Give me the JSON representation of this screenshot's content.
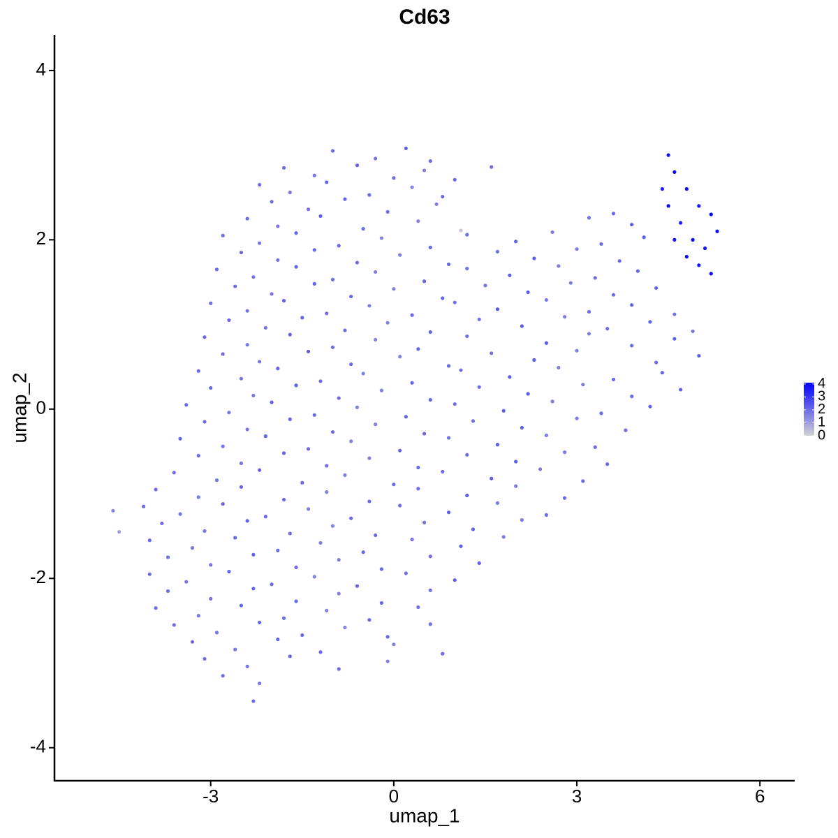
{
  "chart_data": {
    "type": "scatter",
    "title": "Cd63",
    "x_label": "umap_1",
    "y_label": "umap_2",
    "xlim": [
      -5.56,
      6.57
    ],
    "ylim": [
      -4.39,
      4.42
    ],
    "xticks": [
      -3,
      0,
      3,
      6
    ],
    "yticks": [
      -4,
      -2,
      0,
      2,
      4
    ],
    "color_low": "#d3d3d3",
    "color_high": "#0000ff",
    "colorbar_lim": [
      0,
      4.1
    ],
    "colorbar_ticks": [
      0,
      1,
      2,
      3,
      4
    ],
    "x": [
      -1.0,
      -0.3,
      0.2,
      0.6,
      -1.8,
      -1.3,
      -0.6,
      0.0,
      0.5,
      1.0,
      1.6,
      -2.2,
      -1.7,
      -1.1,
      -0.4,
      0.3,
      0.8,
      -2.0,
      -1.4,
      -0.8,
      -0.1,
      0.7,
      3.6,
      -2.4,
      -1.9,
      -1.2,
      -0.5,
      0.4,
      1.1,
      3.2,
      3.9,
      -2.8,
      -2.2,
      -1.6,
      -0.9,
      -0.2,
      0.6,
      1.2,
      2.0,
      2.6,
      3.4,
      4.1,
      -2.5,
      -1.9,
      -1.3,
      -0.6,
      0.1,
      0.9,
      1.7,
      2.3,
      3.0,
      3.7,
      -2.9,
      -2.3,
      -1.6,
      -1.0,
      -0.3,
      0.5,
      1.2,
      1.9,
      2.7,
      3.3,
      4.0,
      -2.6,
      -2.0,
      -1.3,
      -0.7,
      0.0,
      0.8,
      1.5,
      2.2,
      2.9,
      3.6,
      4.3,
      -3.0,
      -2.4,
      -1.8,
      -1.1,
      -0.4,
      0.3,
      1.0,
      1.7,
      2.5,
      3.2,
      3.9,
      4.6,
      -2.7,
      -2.1,
      -1.5,
      -0.8,
      -0.1,
      0.6,
      1.4,
      2.1,
      2.8,
      3.5,
      4.2,
      4.9,
      -3.1,
      -2.4,
      -1.7,
      -1.0,
      -0.3,
      0.4,
      1.2,
      2.5,
      3.2,
      3.9,
      4.6,
      -2.8,
      -2.2,
      -1.4,
      -0.7,
      0.1,
      0.9,
      1.6,
      2.3,
      3.0,
      4.3,
      5.0,
      -3.2,
      -2.5,
      -1.9,
      -1.2,
      -0.5,
      0.3,
      1.1,
      1.9,
      2.7,
      3.6,
      4.4,
      -3.0,
      -2.3,
      -1.6,
      -0.9,
      -0.2,
      0.6,
      1.4,
      2.2,
      3.1,
      3.9,
      4.7,
      -3.4,
      -2.7,
      -2.0,
      -1.3,
      -0.6,
      0.2,
      1.0,
      1.8,
      2.6,
      3.4,
      4.2,
      -3.1,
      -2.4,
      -1.7,
      -1.0,
      -0.3,
      0.5,
      1.3,
      2.1,
      3.0,
      3.8,
      -3.5,
      -2.8,
      -2.1,
      -1.4,
      -0.7,
      0.1,
      0.9,
      1.7,
      2.5,
      3.3,
      -3.2,
      -2.5,
      -1.8,
      -1.1,
      -0.4,
      0.4,
      1.2,
      2.0,
      2.8,
      3.5,
      -3.6,
      -2.9,
      -2.2,
      -1.5,
      -0.8,
      0.0,
      0.8,
      1.6,
      2.4,
      3.1,
      -3.9,
      -3.2,
      -2.5,
      -1.8,
      -1.1,
      -0.4,
      0.4,
      1.2,
      2.0,
      2.8,
      -4.1,
      -3.5,
      -2.8,
      -2.1,
      -1.4,
      -0.7,
      0.1,
      0.9,
      1.7,
      2.5,
      -3.8,
      -3.1,
      -2.4,
      -1.7,
      -1.0,
      -0.3,
      0.5,
      1.3,
      2.1,
      -4.0,
      -3.3,
      -2.6,
      -1.9,
      -1.2,
      -0.5,
      0.3,
      1.1,
      1.8,
      -3.7,
      -3.0,
      -2.3,
      -1.6,
      -0.9,
      -0.2,
      0.6,
      1.4,
      -4.0,
      -3.4,
      -2.7,
      -2.0,
      -1.3,
      -0.6,
      0.2,
      1.0,
      -3.7,
      -3.0,
      -2.3,
      -1.6,
      -0.9,
      -0.2,
      0.6,
      -3.9,
      -3.2,
      -2.5,
      -1.8,
      -1.1,
      -0.4,
      0.4,
      -3.6,
      -2.9,
      -2.2,
      -1.5,
      -0.8,
      -0.1,
      0.6,
      -3.3,
      -2.6,
      -1.9,
      -1.2,
      0.0,
      0.8,
      -3.1,
      -2.4,
      -1.7,
      -0.9,
      -0.1,
      -2.8,
      -2.2,
      -2.3,
      -4.6,
      -4.5,
      4.5,
      4.6,
      4.4,
      4.8,
      5.0,
      5.2,
      4.7,
      5.3,
      4.9,
      5.1,
      4.8,
      5.0,
      5.2,
      4.5,
      4.6
    ],
    "y": [
      3.05,
      2.96,
      3.08,
      2.93,
      2.85,
      2.76,
      2.88,
      2.73,
      2.82,
      2.71,
      2.86,
      2.65,
      2.56,
      2.68,
      2.53,
      2.62,
      2.51,
      2.45,
      2.36,
      2.48,
      2.33,
      2.42,
      2.31,
      2.25,
      2.16,
      2.28,
      2.13,
      2.22,
      2.11,
      2.26,
      2.18,
      2.05,
      1.96,
      2.08,
      1.93,
      2.02,
      1.91,
      2.06,
      1.98,
      2.09,
      1.95,
      2.03,
      1.85,
      1.76,
      1.88,
      1.73,
      1.82,
      1.71,
      1.86,
      1.78,
      1.89,
      1.75,
      1.65,
      1.56,
      1.68,
      1.53,
      1.62,
      1.51,
      1.66,
      1.58,
      1.69,
      1.55,
      1.63,
      1.45,
      1.36,
      1.48,
      1.33,
      1.42,
      1.31,
      1.46,
      1.38,
      1.49,
      1.35,
      1.43,
      1.25,
      1.16,
      1.28,
      1.13,
      1.22,
      1.11,
      1.26,
      1.18,
      1.29,
      1.15,
      1.23,
      1.12,
      1.05,
      0.96,
      1.08,
      0.93,
      1.02,
      0.91,
      1.06,
      0.98,
      1.09,
      0.95,
      1.03,
      0.92,
      0.85,
      0.76,
      0.88,
      0.73,
      0.82,
      0.71,
      0.86,
      0.78,
      0.89,
      0.75,
      0.83,
      0.65,
      0.56,
      0.68,
      0.53,
      0.62,
      0.51,
      0.66,
      0.58,
      0.69,
      0.55,
      0.63,
      0.45,
      0.36,
      0.48,
      0.33,
      0.42,
      0.31,
      0.46,
      0.38,
      0.49,
      0.35,
      0.43,
      0.25,
      0.16,
      0.28,
      0.13,
      0.22,
      0.11,
      0.26,
      0.18,
      0.29,
      0.15,
      0.23,
      0.05,
      -0.04,
      0.08,
      -0.07,
      0.02,
      -0.09,
      0.06,
      -0.02,
      0.09,
      -0.05,
      0.03,
      -0.15,
      -0.24,
      -0.12,
      -0.27,
      -0.18,
      -0.29,
      -0.14,
      -0.22,
      -0.11,
      -0.25,
      -0.35,
      -0.44,
      -0.32,
      -0.47,
      -0.38,
      -0.49,
      -0.34,
      -0.42,
      -0.31,
      -0.45,
      -0.55,
      -0.64,
      -0.52,
      -0.67,
      -0.58,
      -0.69,
      -0.54,
      -0.62,
      -0.51,
      -0.65,
      -0.75,
      -0.84,
      -0.72,
      -0.87,
      -0.78,
      -0.89,
      -0.74,
      -0.82,
      -0.71,
      -0.85,
      -0.95,
      -1.04,
      -0.92,
      -1.07,
      -0.98,
      -1.09,
      -0.94,
      -1.02,
      -0.91,
      -1.05,
      -1.15,
      -1.24,
      -1.12,
      -1.27,
      -1.18,
      -1.29,
      -1.14,
      -1.22,
      -1.11,
      -1.25,
      -1.35,
      -1.44,
      -1.32,
      -1.47,
      -1.38,
      -1.49,
      -1.34,
      -1.42,
      -1.31,
      -1.55,
      -1.64,
      -1.52,
      -1.67,
      -1.58,
      -1.69,
      -1.54,
      -1.62,
      -1.51,
      -1.75,
      -1.84,
      -1.72,
      -1.87,
      -1.78,
      -1.89,
      -1.74,
      -1.82,
      -1.95,
      -2.04,
      -1.92,
      -2.07,
      -1.98,
      -2.09,
      -1.94,
      -2.02,
      -2.15,
      -2.24,
      -2.12,
      -2.27,
      -2.18,
      -2.29,
      -2.14,
      -2.35,
      -2.44,
      -2.32,
      -2.47,
      -2.38,
      -2.49,
      -2.34,
      -2.55,
      -2.64,
      -2.52,
      -2.67,
      -2.58,
      -2.69,
      -2.54,
      -2.75,
      -2.84,
      -2.72,
      -2.87,
      -2.78,
      -2.89,
      -2.95,
      -3.04,
      -2.92,
      -3.07,
      -2.98,
      -3.15,
      -3.24,
      -3.45,
      -1.2,
      -1.45,
      3.0,
      2.8,
      2.6,
      2.6,
      2.4,
      2.3,
      2.2,
      2.1,
      2.0,
      1.9,
      1.8,
      1.7,
      1.6,
      2.4,
      2.0
    ],
    "values": [
      2,
      1.8,
      2.2,
      2,
      2,
      1.8,
      2.2,
      2,
      1.6,
      2.1,
      1.9,
      2,
      1.8,
      2.2,
      2,
      1.6,
      2.1,
      2,
      1.8,
      2.2,
      2,
      1.6,
      2.1,
      2,
      1.8,
      2.2,
      2,
      1.6,
      0.3,
      1.9,
      2.3,
      2,
      1.8,
      2.2,
      2,
      1.6,
      2.1,
      1.9,
      2.3,
      1.7,
      2,
      2.2,
      2,
      1.8,
      2.2,
      2,
      1.6,
      2.1,
      1.9,
      2.3,
      1.7,
      2,
      2,
      1.8,
      2.2,
      2,
      1.6,
      2.1,
      1.9,
      2.3,
      1.7,
      2,
      2.2,
      2,
      1.8,
      2.2,
      2,
      1.6,
      2.1,
      1.9,
      2.3,
      1.7,
      2,
      2.2,
      2,
      1.8,
      2.2,
      2,
      1.6,
      2.1,
      1.9,
      2.3,
      1.7,
      2,
      2.2,
      1.8,
      2,
      1.8,
      2.2,
      2,
      1.6,
      2.1,
      1.9,
      2.3,
      1.7,
      2,
      2.2,
      1.8,
      2,
      1.8,
      2.2,
      2,
      1.6,
      2.1,
      1.9,
      2.3,
      1.7,
      2,
      2.2,
      2,
      1.8,
      2.2,
      2,
      1.6,
      2.1,
      1.9,
      2.3,
      1.7,
      2,
      2.2,
      2,
      1.8,
      2.2,
      2,
      1.6,
      2.1,
      1.9,
      2.3,
      1.7,
      2,
      2.2,
      2,
      1.8,
      2.2,
      2,
      1.6,
      2.1,
      1.9,
      2.3,
      1.7,
      2,
      2.2,
      2,
      1.8,
      2.2,
      2,
      1.6,
      2.1,
      1.9,
      2.3,
      1.7,
      2,
      2.2,
      2,
      1.8,
      2.2,
      2,
      1.6,
      2.1,
      1.9,
      2.3,
      1.7,
      2,
      2,
      1.8,
      2.2,
      2,
      1.6,
      2.1,
      1.9,
      2.3,
      1.7,
      2,
      2,
      1.8,
      2.2,
      2,
      1.6,
      2.1,
      1.9,
      2.3,
      1.7,
      2,
      2,
      1.8,
      2.2,
      2,
      1.6,
      2.1,
      1.9,
      2.3,
      1.7,
      2,
      2,
      1.8,
      2.2,
      2,
      1.6,
      2.1,
      1.9,
      2.3,
      1.7,
      2,
      2,
      1.8,
      2.2,
      2,
      1.6,
      2.1,
      1.9,
      2.3,
      1.7,
      2,
      2,
      1.8,
      2.2,
      2,
      1.6,
      2.1,
      1.9,
      2.3,
      1.7,
      2,
      1.8,
      2.2,
      2,
      1.6,
      2.1,
      1.9,
      2.3,
      1.7,
      2,
      1.8,
      2.2,
      2,
      1.6,
      2.1,
      1.9,
      2.3,
      2,
      1.8,
      2.2,
      2,
      1.6,
      2.1,
      1.9,
      2.3,
      2,
      1.8,
      2.2,
      2,
      1.6,
      2.1,
      1.9,
      2,
      1.8,
      2.2,
      2,
      1.6,
      2.1,
      1.9,
      2,
      1.8,
      2.2,
      2,
      1.6,
      2.1,
      1.9,
      2,
      1.8,
      2.2,
      2,
      1.6,
      2.1,
      2,
      1.8,
      2.2,
      2,
      1.6,
      2,
      1.8,
      2,
      1.5,
      1.0,
      3.8,
      4,
      3.6,
      3.9,
      3.7,
      4,
      3.5,
      3.8,
      4,
      3.7,
      3.9,
      3.6,
      3.8,
      4,
      3.7
    ]
  }
}
